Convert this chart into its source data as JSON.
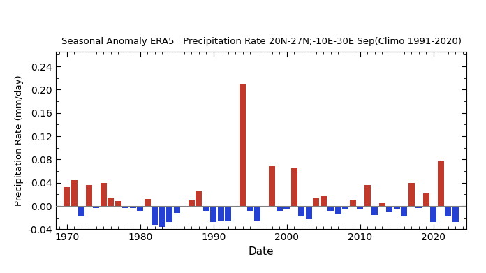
{
  "title": "Seasonal Anomaly ERA5   Precipitation Rate 20N-27N;-10E-30E Sep(Climo 1991-2020)",
  "xlabel": "Date",
  "ylabel": "Precipitation Rate (mm/day)",
  "ylim": [
    -0.04,
    0.265
  ],
  "yticks": [
    -0.04,
    0.0,
    0.04,
    0.08,
    0.12,
    0.16,
    0.2,
    0.24
  ],
  "background_color": "#ffffff",
  "pos_color": "#c0392b",
  "neg_color": "#2541d4",
  "years": [
    1970,
    1971,
    1972,
    1973,
    1974,
    1975,
    1976,
    1977,
    1978,
    1979,
    1980,
    1981,
    1982,
    1983,
    1984,
    1985,
    1986,
    1987,
    1988,
    1989,
    1990,
    1991,
    1992,
    1993,
    1994,
    1995,
    1996,
    1997,
    1998,
    1999,
    2000,
    2001,
    2002,
    2003,
    2004,
    2005,
    2006,
    2007,
    2008,
    2009,
    2010,
    2011,
    2012,
    2013,
    2014,
    2015,
    2016,
    2017,
    2018,
    2019,
    2020,
    2021,
    2022,
    2023
  ],
  "values": [
    0.032,
    0.044,
    -0.018,
    0.036,
    -0.003,
    0.04,
    0.015,
    0.008,
    -0.004,
    -0.004,
    -0.008,
    0.012,
    -0.032,
    -0.036,
    -0.028,
    -0.012,
    -0.001,
    0.01,
    0.025,
    -0.008,
    -0.028,
    -0.026,
    -0.025,
    -0.001,
    0.21,
    -0.008,
    -0.025,
    0.0,
    0.068,
    -0.008,
    -0.006,
    0.065,
    -0.018,
    -0.022,
    0.014,
    0.017,
    -0.008,
    -0.013,
    -0.006,
    0.011,
    -0.006,
    0.036,
    -0.015,
    0.005,
    -0.01,
    -0.006,
    -0.018,
    0.04,
    -0.003,
    0.022,
    -0.028,
    0.078,
    -0.018,
    -0.028
  ],
  "xlim": [
    1968.5,
    2024.5
  ],
  "xticks": [
    1970,
    1980,
    1990,
    2000,
    2010,
    2020
  ],
  "bar_width": 0.85,
  "title_fontsize": 9.5,
  "xlabel_fontsize": 11,
  "ylabel_fontsize": 9.5,
  "tick_fontsize": 10,
  "figsize": [
    6.96,
    3.91
  ],
  "dpi": 100
}
